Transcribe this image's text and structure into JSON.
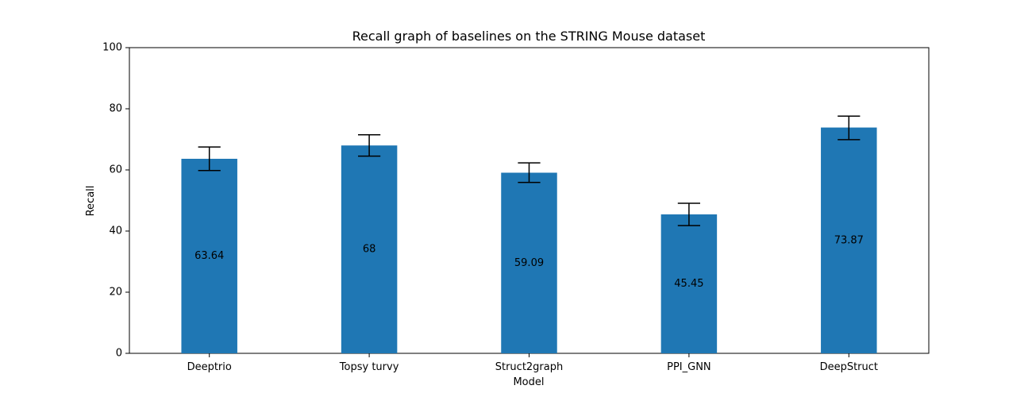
{
  "chart_data": {
    "type": "bar",
    "title": "Recall graph of baselines on the STRING Mouse dataset",
    "xlabel": "Model",
    "ylabel": "Recall",
    "categories": [
      "Deeptrio",
      "Topsy turvy",
      "Struct2graph",
      "PPI_GNN",
      "DeepStruct"
    ],
    "values": [
      63.64,
      68,
      59.09,
      45.45,
      73.87
    ],
    "value_labels": [
      "63.64",
      "68",
      "59.09",
      "45.45",
      "73.87"
    ],
    "error_low": [
      59.8,
      64.5,
      55.9,
      41.8,
      69.9
    ],
    "error_high": [
      67.5,
      71.5,
      62.3,
      49.1,
      77.6
    ],
    "ylim": [
      0,
      100
    ],
    "yticks": [
      0,
      20,
      40,
      60,
      80,
      100
    ],
    "ytick_labels": [
      "0",
      "20",
      "40",
      "60",
      "80",
      "100"
    ],
    "bar_color": "#1f77b4",
    "errorbar_color": "#000000",
    "grid": false,
    "legend": "none"
  }
}
